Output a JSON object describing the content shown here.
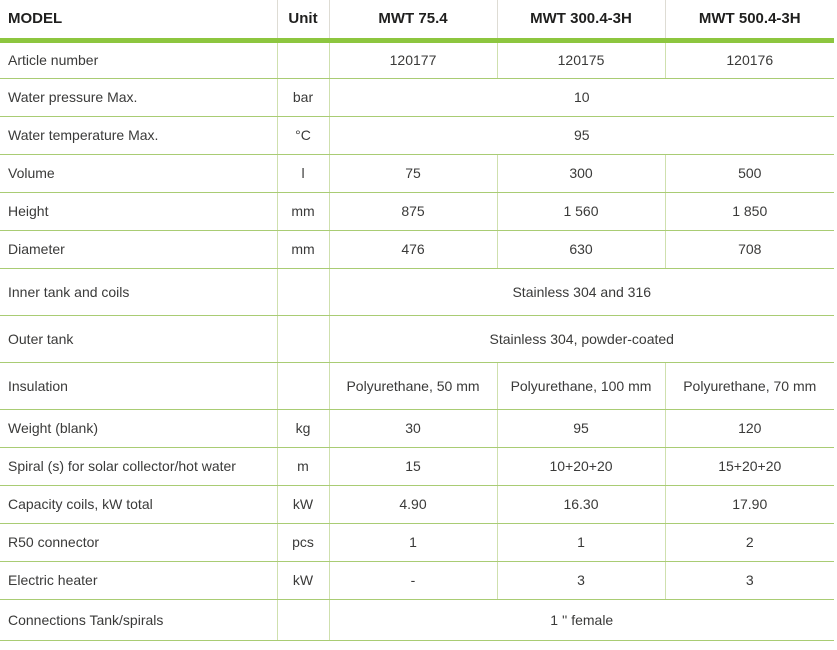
{
  "colors": {
    "thick_rule": "#8dc63f",
    "thin_rule": "#a9cc74",
    "vertical_rule_body": "#cfe0ae",
    "vertical_rule_header": "#dedcd4",
    "header_text": "#1f1f1e",
    "body_text": "#3a3a39"
  },
  "table": {
    "header": {
      "model": "MODEL",
      "unit": "Unit",
      "models": [
        "MWT 75.4",
        "MWT 300.4-3H",
        "MWT 500.4-3H"
      ]
    },
    "rows": [
      {
        "label": "Article number",
        "unit": "",
        "values": [
          "120177",
          "120175",
          "120176"
        ]
      },
      {
        "label": "Water pressure Max.",
        "unit": "bar",
        "value": "10"
      },
      {
        "label": "Water temperature Max.",
        "unit": "°C",
        "value": "95"
      },
      {
        "label": "Volume",
        "unit": "l",
        "values": [
          "75",
          "300",
          "500"
        ]
      },
      {
        "label": "Height",
        "unit": "mm",
        "values": [
          "875",
          "1 560",
          "1 850"
        ]
      },
      {
        "label": "Diameter",
        "unit": "mm",
        "values": [
          "476",
          "630",
          "708"
        ]
      },
      {
        "label": "Inner tank and coils",
        "unit": "",
        "value": "Stainless 304 and 316"
      },
      {
        "label": "Outer tank",
        "unit": "",
        "value": "Stainless 304, powder-coated"
      },
      {
        "label": "Insulation",
        "unit": "",
        "values": [
          "Polyurethane, 50 mm",
          "Polyurethane, 100 mm",
          "Polyurethane, 70 mm"
        ]
      },
      {
        "label": "Weight (blank)",
        "unit": "kg",
        "values": [
          "30",
          "95",
          "120"
        ]
      },
      {
        "label": "Spiral (s) for solar collector/hot water",
        "unit": "m",
        "values": [
          "15",
          "10+20+20",
          "15+20+20"
        ]
      },
      {
        "label": "Capacity coils, kW total",
        "unit": "kW",
        "values": [
          "4.90",
          "16.30",
          "17.90"
        ]
      },
      {
        "label": "R50 connector",
        "unit": "pcs",
        "values": [
          "1",
          "1",
          "2"
        ]
      },
      {
        "label": "Electric heater",
        "unit": "kW",
        "values": [
          "-",
          "3",
          "3"
        ]
      },
      {
        "label": "Connections Tank/spirals",
        "unit": "",
        "value": "1 '' female"
      }
    ]
  }
}
